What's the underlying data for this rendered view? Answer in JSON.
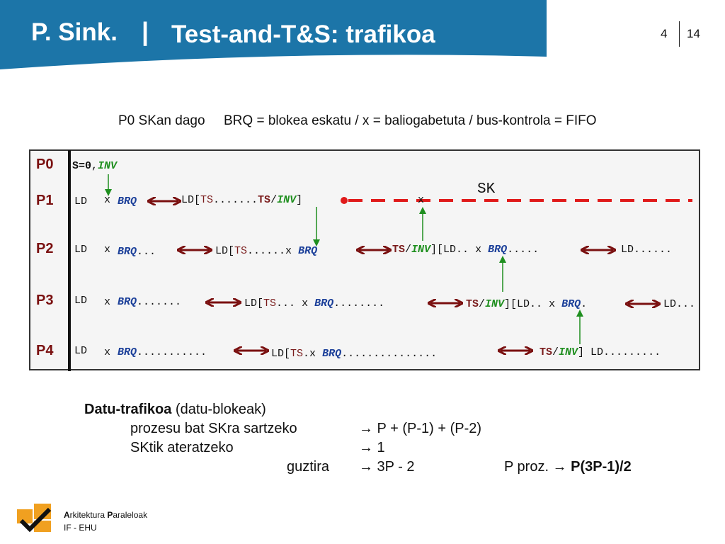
{
  "header": {
    "course": "P. Sink.",
    "separator": "|",
    "title": "Test-and-T&S: trafikoa",
    "chapter": "4",
    "page": "14"
  },
  "legend_line": {
    "state": "P0 SKan dago",
    "definitions": "BRQ = blokea eskatu / x = baliogabetuta / bus-kontrola = FIFO"
  },
  "diagram": {
    "sk_label": "SK",
    "p0": {
      "label": "P0",
      "s0": "S=0",
      "comma": ",",
      "inv": "INV"
    },
    "p1": {
      "label": "P1",
      "ld": "LD",
      "x": "x",
      "brq": "BRQ",
      "ld_open": "LD[",
      "ts": "TS",
      "dots": ".......",
      "ts2": "TS",
      "slash": "/",
      "inv": "INV",
      "close": "]",
      "x2": "x"
    },
    "p2": {
      "label": "P2",
      "ld": "LD",
      "x": "x",
      "brq": "BRQ",
      "dots1": "...",
      "ld_open": "LD[",
      "ts": "TS",
      "dots2": "......",
      "x2": "x",
      "brq2": "BRQ",
      "ts2": "TS",
      "slash": "/",
      "inv": "INV",
      "ld2": "][LD..",
      "x3": "x",
      "brq3": "BRQ",
      "dots3": ".....",
      "ld3": "LD......"
    },
    "p3": {
      "label": "P3",
      "ld": "LD",
      "x": "x",
      "brq": "BRQ",
      "dots1": ".......",
      "ld_open": "LD[",
      "ts": "TS",
      "dots2": "...",
      "x2": "x",
      "brq2": "BRQ",
      "dots3": "........",
      "ts2": "TS",
      "slash": "/",
      "inv": "INV",
      "ld2": "][LD..",
      "x3": "x",
      "brq3": "BRQ",
      "dot": ".",
      "ld3": "LD..."
    },
    "p4": {
      "label": "P4",
      "ld": "LD",
      "x": "x",
      "brq": "BRQ",
      "dots1": "...........",
      "ld_open": "LD[",
      "ts": "TS",
      "dot": ".",
      "x2": "x",
      "brq2": "BRQ",
      "dots2": "...............",
      "ts2": "TS",
      "slash": "/",
      "inv": "INV",
      "ld2": "] LD........."
    }
  },
  "traffic": {
    "heading_bold": "Datu-trafikoa",
    "heading_rest": " (datu-blokeak)",
    "enter_label": "prozesu bat SKra sartzeko",
    "enter_value": "→ P + (P-1) + (P-2)",
    "exit_label": "SKtik ateratzeko",
    "exit_value": "→ 1",
    "total_label": "guztira",
    "total_value": "→ 3P - 2",
    "nproc_label": "P proz. →",
    "nproc_value": "P(3P-1)/2"
  },
  "footer": {
    "line1_a": "A",
    "line1_b": "rkitektura ",
    "line1_c": "P",
    "line1_d": "araleloak",
    "line2": "IF - EHU",
    "logo_icon": "checkmark-logo-icon"
  },
  "colors": {
    "header_bg": "#1c75a8",
    "arrow_dark_red": "#7a1010",
    "green": "#1f8f1f",
    "dashed_red": "#e01a1a",
    "logo_orange": "#f0a020"
  }
}
